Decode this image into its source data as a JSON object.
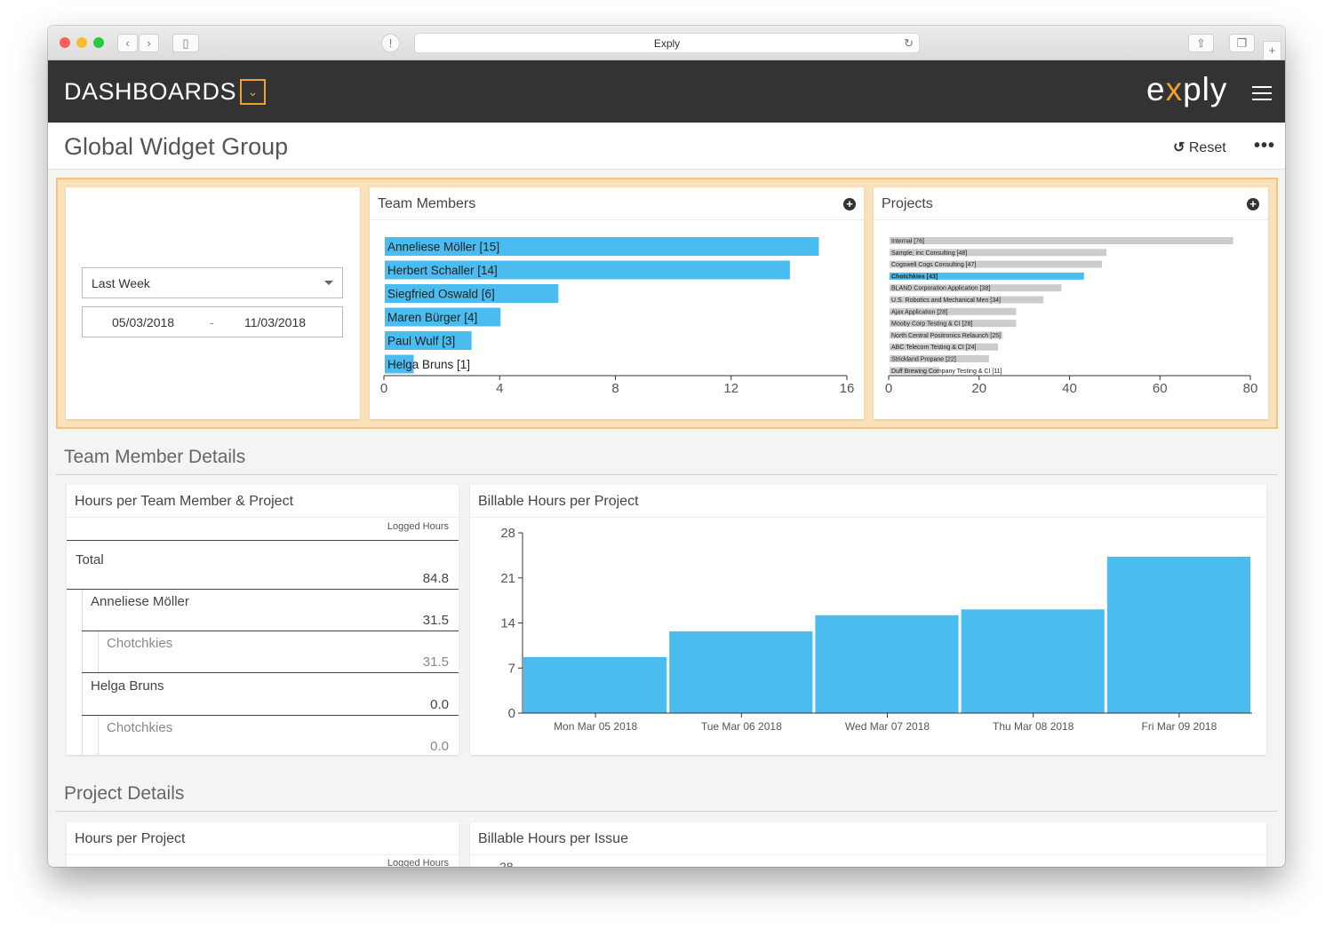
{
  "browser": {
    "url": "Exply",
    "colors": {
      "close": "#fe5f57",
      "minimize": "#febc2e",
      "zoom": "#28c840"
    }
  },
  "app": {
    "title": "DASHBOARDS",
    "logo_before": "e",
    "logo_x": "x",
    "logo_after": "ply",
    "accent": "#f0a030"
  },
  "page": {
    "title": "Global Widget Group",
    "reset_label": "Reset",
    "more_label": "•••"
  },
  "filter": {
    "period": "Last Week",
    "date_from": "05/03/2018",
    "date_sep": "-",
    "date_to": "11/03/2018"
  },
  "team_chart": {
    "title": "Team Members",
    "plus": "+",
    "chart_data": {
      "type": "bar",
      "orientation": "horizontal",
      "categories": [
        "Anneliese Möller [15]",
        "Herbert Schaller [14]",
        "Siegfried Oswald [6]",
        "Maren Bürger [4]",
        "Paul Wulf [3]",
        "Helga Bruns [1]"
      ],
      "values": [
        15,
        14,
        6,
        4,
        3,
        1
      ],
      "xlim": [
        0,
        16
      ],
      "xticks": [
        "0",
        "4",
        "8",
        "12",
        "16"
      ],
      "color": "#4bbcf0"
    }
  },
  "projects_chart": {
    "title": "Projects",
    "plus": "+",
    "chart_data": {
      "type": "bar",
      "orientation": "horizontal",
      "categories": [
        "Internal [76]",
        "Sample, inc Consulting [48]",
        "Cogswell Cogs Consulting [47]",
        "Chotchkies [43]",
        "BLAND Corporation Application [38]",
        "U.S. Robotics and Mechanical Men [34]",
        "Ajax Application [28]",
        "Mooby Corp Testing & CI [28]",
        "North Central Positronics Relaunch [25]",
        "ABC Telecom Testing & CI [24]",
        "Strickland Propane [22]",
        "Duff Brewing Company Testing & CI [11]"
      ],
      "values": [
        76,
        48,
        47,
        43,
        38,
        34,
        28,
        28,
        25,
        24,
        22,
        11
      ],
      "highlight": "Chotchkies [43]",
      "xlim": [
        0,
        80
      ],
      "xticks": [
        "0",
        "20",
        "40",
        "60",
        "80"
      ],
      "color": "#cccccc",
      "highlight_color": "#4bbcf0"
    }
  },
  "team_details": {
    "section_title": "Team Member Details",
    "table": {
      "title": "Hours per Team Member & Project",
      "column": "Logged Hours",
      "rows": [
        {
          "label": "Total",
          "value": "84.8"
        },
        {
          "label": "Anneliese Möller",
          "value": "31.5"
        },
        {
          "label": "Chotchkies",
          "value": "31.5"
        },
        {
          "label": "Helga Bruns",
          "value": "0.0"
        },
        {
          "label": "Chotchkies",
          "value": "0.0"
        }
      ]
    },
    "billable_chart": {
      "title": "Billable Hours per Project",
      "chart_data": {
        "type": "bar",
        "categories": [
          "Mon Mar 05 2018",
          "Tue Mar 06 2018",
          "Wed Mar 07 2018",
          "Thu Mar 08 2018",
          "Fri Mar 09 2018"
        ],
        "values": [
          8.7,
          12.7,
          15.2,
          16.1,
          24.3
        ],
        "ylim": [
          0,
          28
        ],
        "yticks": [
          "0",
          "7",
          "14",
          "21",
          "28"
        ],
        "color": "#4bbcf0"
      }
    }
  },
  "project_details": {
    "section_title": "Project Details",
    "table_title": "Hours per Project",
    "column": "Logged Hours",
    "chart_title": "Billable Hours per Issue",
    "first_tick": "28"
  }
}
